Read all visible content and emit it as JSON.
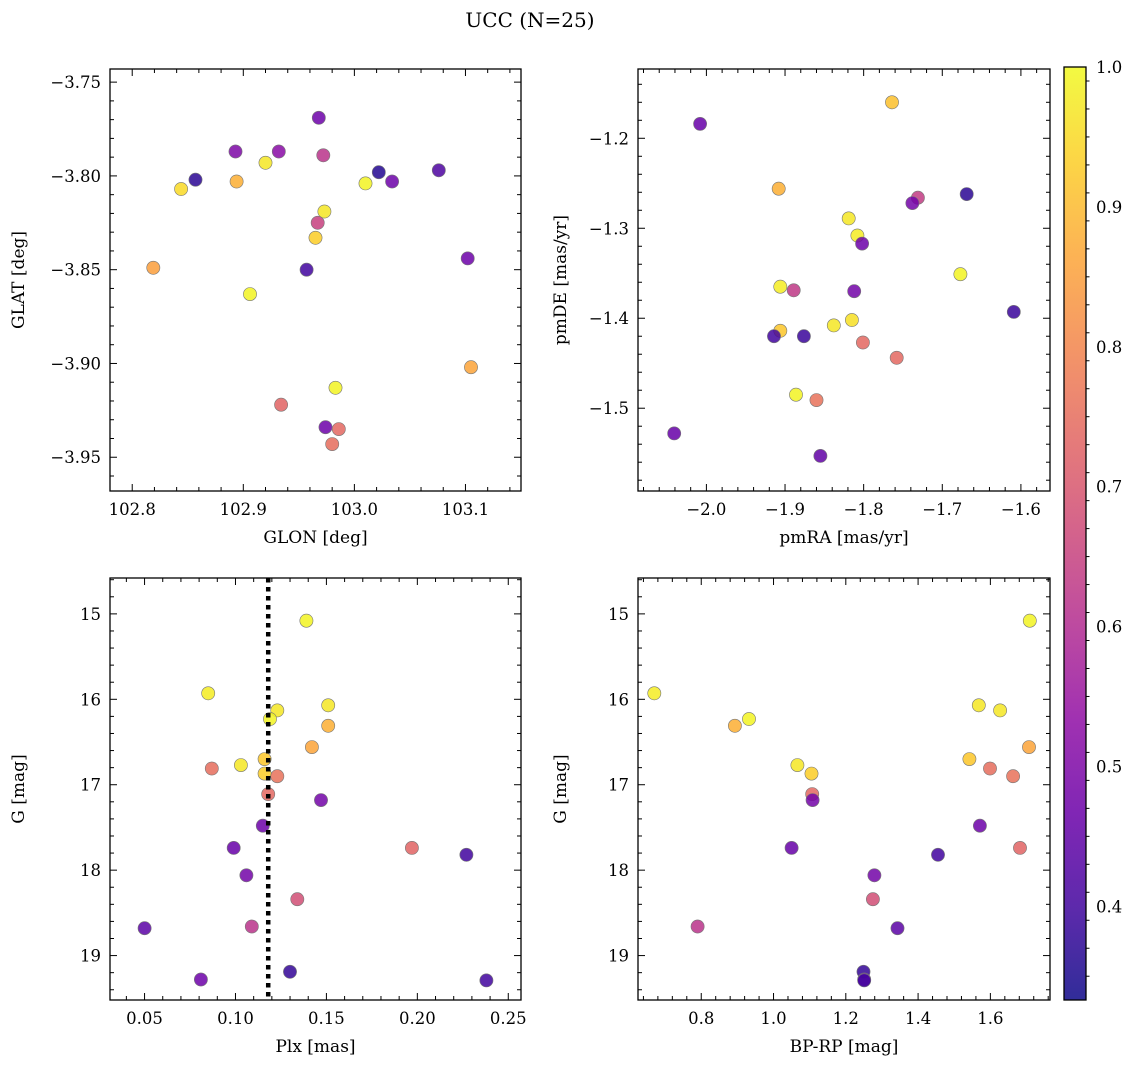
{
  "chart_data": {
    "title": "UCC (N=25)",
    "colorbar": {
      "min": 0.333,
      "max": 1.0,
      "ticks": [
        0.4,
        0.5,
        0.6,
        0.7,
        0.8,
        0.9,
        1.0
      ],
      "tick_labels": [
        "0.4",
        "0.5",
        "0.6",
        "0.7",
        "0.8",
        "0.9",
        "1.0"
      ],
      "colormap": "plasma",
      "palette": [
        "#0d0887",
        "#41049d",
        "#6a00a8",
        "#8f0da4",
        "#b12a90",
        "#cc4778",
        "#e16462",
        "#f2844b",
        "#fca636",
        "#fcce25",
        "#f0f921"
      ]
    },
    "panels": [
      {
        "type": "scatter",
        "name": "glon-glat",
        "xlabel": "GLON [deg]",
        "ylabel": "GLAT [deg]",
        "xlim": [
          102.78,
          103.15
        ],
        "ylim": [
          -3.968,
          -3.743
        ],
        "yinverted": false,
        "xticks": [
          102.8,
          102.9,
          103.0,
          103.1
        ],
        "xtick_labels": [
          "102.8",
          "102.9",
          "103.0",
          "103.1"
        ],
        "yticks": [
          -3.75,
          -3.8,
          -3.85,
          -3.9,
          -3.95
        ],
        "ytick_labels": [
          "−3.75",
          "−3.80",
          "−3.85",
          "−3.90",
          "−3.95"
        ],
        "points": [
          {
            "x": 102.857,
            "y": -3.802,
            "c": 0.37
          },
          {
            "x": 102.893,
            "y": -3.787,
            "c": 0.5
          },
          {
            "x": 102.932,
            "y": -3.787,
            "c": 0.52
          },
          {
            "x": 102.968,
            "y": -3.769,
            "c": 0.47
          },
          {
            "x": 102.972,
            "y": -3.789,
            "c": 0.62
          },
          {
            "x": 103.022,
            "y": -3.798,
            "c": 0.36
          },
          {
            "x": 103.034,
            "y": -3.803,
            "c": 0.47
          },
          {
            "x": 103.076,
            "y": -3.797,
            "c": 0.42
          },
          {
            "x": 102.844,
            "y": -3.807,
            "c": 0.95
          },
          {
            "x": 102.894,
            "y": -3.803,
            "c": 0.88
          },
          {
            "x": 102.92,
            "y": -3.793,
            "c": 0.97
          },
          {
            "x": 103.01,
            "y": -3.804,
            "c": 0.99
          },
          {
            "x": 102.973,
            "y": -3.819,
            "c": 0.97
          },
          {
            "x": 102.967,
            "y": -3.825,
            "c": 0.65
          },
          {
            "x": 102.965,
            "y": -3.833,
            "c": 0.93
          },
          {
            "x": 102.819,
            "y": -3.849,
            "c": 0.85
          },
          {
            "x": 102.957,
            "y": -3.85,
            "c": 0.4
          },
          {
            "x": 103.102,
            "y": -3.844,
            "c": 0.47
          },
          {
            "x": 102.906,
            "y": -3.863,
            "c": 0.99
          },
          {
            "x": 103.105,
            "y": -3.902,
            "c": 0.86
          },
          {
            "x": 102.983,
            "y": -3.913,
            "c": 0.99
          },
          {
            "x": 102.934,
            "y": -3.922,
            "c": 0.73
          },
          {
            "x": 102.974,
            "y": -3.934,
            "c": 0.47
          },
          {
            "x": 102.986,
            "y": -3.935,
            "c": 0.74
          },
          {
            "x": 102.98,
            "y": -3.943,
            "c": 0.75
          }
        ]
      },
      {
        "type": "scatter",
        "name": "pmra-pmde",
        "xlabel": "pmRA [mas/yr]",
        "ylabel": "pmDE [mas/yr]",
        "xlim": [
          -2.087,
          -1.563
        ],
        "ylim": [
          -1.592,
          -1.123
        ],
        "yinverted": false,
        "xticks": [
          -2.0,
          -1.9,
          -1.8,
          -1.7,
          -1.6
        ],
        "xtick_labels": [
          "−2.0",
          "−1.9",
          "−1.8",
          "−1.7",
          "−1.6"
        ],
        "yticks": [
          -1.2,
          -1.3,
          -1.4,
          -1.5
        ],
        "ytick_labels": [
          "−1.2",
          "−1.3",
          "−1.4",
          "−1.5"
        ],
        "points": [
          {
            "x": -2.008,
            "y": -1.184,
            "c": 0.46
          },
          {
            "x": -1.764,
            "y": -1.16,
            "c": 0.91
          },
          {
            "x": -1.908,
            "y": -1.256,
            "c": 0.88
          },
          {
            "x": -1.669,
            "y": -1.262,
            "c": 0.37
          },
          {
            "x": -1.731,
            "y": -1.266,
            "c": 0.64
          },
          {
            "x": -1.738,
            "y": -1.272,
            "c": 0.48
          },
          {
            "x": -1.819,
            "y": -1.289,
            "c": 0.97
          },
          {
            "x": -1.808,
            "y": -1.308,
            "c": 0.98
          },
          {
            "x": -1.802,
            "y": -1.317,
            "c": 0.47
          },
          {
            "x": -1.677,
            "y": -1.351,
            "c": 0.99
          },
          {
            "x": -1.906,
            "y": -1.365,
            "c": 0.98
          },
          {
            "x": -1.889,
            "y": -1.369,
            "c": 0.63
          },
          {
            "x": -1.812,
            "y": -1.37,
            "c": 0.48
          },
          {
            "x": -1.609,
            "y": -1.393,
            "c": 0.39
          },
          {
            "x": -1.815,
            "y": -1.402,
            "c": 0.96
          },
          {
            "x": -1.838,
            "y": -1.408,
            "c": 0.97
          },
          {
            "x": -1.906,
            "y": -1.414,
            "c": 0.92
          },
          {
            "x": -1.914,
            "y": -1.42,
            "c": 0.4
          },
          {
            "x": -1.876,
            "y": -1.42,
            "c": 0.39
          },
          {
            "x": -1.801,
            "y": -1.427,
            "c": 0.74
          },
          {
            "x": -1.758,
            "y": -1.444,
            "c": 0.74
          },
          {
            "x": -1.886,
            "y": -1.485,
            "c": 0.99
          },
          {
            "x": -1.86,
            "y": -1.491,
            "c": 0.76
          },
          {
            "x": -2.041,
            "y": -1.528,
            "c": 0.46
          },
          {
            "x": -1.855,
            "y": -1.553,
            "c": 0.45
          }
        ]
      },
      {
        "type": "scatter",
        "name": "plx-g",
        "xlabel": "Plx [mas]",
        "ylabel": "G [mag]",
        "xlim": [
          0.031,
          0.257
        ],
        "ylim": [
          19.52,
          14.58
        ],
        "yinverted": true,
        "xticks": [
          0.05,
          0.1,
          0.15,
          0.2,
          0.25
        ],
        "xtick_labels": [
          "0.05",
          "0.10",
          "0.15",
          "0.20",
          "0.25"
        ],
        "yticks": [
          15,
          16,
          17,
          18,
          19
        ],
        "ytick_labels": [
          "15",
          "16",
          "17",
          "18",
          "19"
        ],
        "vline": {
          "x": 0.118,
          "style": "dotted",
          "color": "#000000"
        },
        "points": [
          {
            "x": 0.139,
            "y": 15.08,
            "c": 0.99
          },
          {
            "x": 0.085,
            "y": 15.93,
            "c": 0.98
          },
          {
            "x": 0.151,
            "y": 16.07,
            "c": 0.97
          },
          {
            "x": 0.123,
            "y": 16.13,
            "c": 0.97
          },
          {
            "x": 0.119,
            "y": 16.23,
            "c": 0.99
          },
          {
            "x": 0.151,
            "y": 16.31,
            "c": 0.88
          },
          {
            "x": 0.142,
            "y": 16.56,
            "c": 0.86
          },
          {
            "x": 0.116,
            "y": 16.7,
            "c": 0.92
          },
          {
            "x": 0.103,
            "y": 16.77,
            "c": 0.97
          },
          {
            "x": 0.087,
            "y": 16.81,
            "c": 0.75
          },
          {
            "x": 0.116,
            "y": 16.87,
            "c": 0.93
          },
          {
            "x": 0.123,
            "y": 16.9,
            "c": 0.76
          },
          {
            "x": 0.118,
            "y": 17.11,
            "c": 0.74
          },
          {
            "x": 0.147,
            "y": 17.18,
            "c": 0.48
          },
          {
            "x": 0.115,
            "y": 17.48,
            "c": 0.47
          },
          {
            "x": 0.099,
            "y": 17.74,
            "c": 0.46
          },
          {
            "x": 0.197,
            "y": 17.74,
            "c": 0.73
          },
          {
            "x": 0.227,
            "y": 17.82,
            "c": 0.4
          },
          {
            "x": 0.106,
            "y": 18.06,
            "c": 0.48
          },
          {
            "x": 0.134,
            "y": 18.34,
            "c": 0.68
          },
          {
            "x": 0.109,
            "y": 18.66,
            "c": 0.62
          },
          {
            "x": 0.05,
            "y": 18.68,
            "c": 0.44
          },
          {
            "x": 0.13,
            "y": 19.19,
            "c": 0.38
          },
          {
            "x": 0.081,
            "y": 19.28,
            "c": 0.47
          },
          {
            "x": 0.238,
            "y": 19.29,
            "c": 0.4
          }
        ]
      },
      {
        "type": "scatter",
        "name": "bprp-g",
        "xlabel": "BP-RP [mag]",
        "ylabel": "G [mag]",
        "xlim": [
          0.625,
          1.765
        ],
        "ylim": [
          19.52,
          14.58
        ],
        "yinverted": true,
        "xticks": [
          0.8,
          1.0,
          1.2,
          1.4,
          1.6
        ],
        "xtick_labels": [
          "0.8",
          "1.0",
          "1.2",
          "1.4",
          "1.6"
        ],
        "yticks": [
          15,
          16,
          17,
          18,
          19
        ],
        "ytick_labels": [
          "15",
          "16",
          "17",
          "18",
          "19"
        ],
        "points": [
          {
            "x": 1.709,
            "y": 15.08,
            "c": 0.99
          },
          {
            "x": 0.67,
            "y": 15.93,
            "c": 0.98
          },
          {
            "x": 1.568,
            "y": 16.07,
            "c": 0.97
          },
          {
            "x": 1.627,
            "y": 16.13,
            "c": 0.97
          },
          {
            "x": 0.932,
            "y": 16.23,
            "c": 0.99
          },
          {
            "x": 0.893,
            "y": 16.31,
            "c": 0.88
          },
          {
            "x": 1.707,
            "y": 16.56,
            "c": 0.86
          },
          {
            "x": 1.542,
            "y": 16.7,
            "c": 0.92
          },
          {
            "x": 1.066,
            "y": 16.77,
            "c": 0.97
          },
          {
            "x": 1.599,
            "y": 16.81,
            "c": 0.75
          },
          {
            "x": 1.105,
            "y": 16.87,
            "c": 0.93
          },
          {
            "x": 1.663,
            "y": 16.9,
            "c": 0.76
          },
          {
            "x": 1.107,
            "y": 17.11,
            "c": 0.74
          },
          {
            "x": 1.108,
            "y": 17.18,
            "c": 0.48
          },
          {
            "x": 1.571,
            "y": 17.48,
            "c": 0.47
          },
          {
            "x": 1.05,
            "y": 17.74,
            "c": 0.46
          },
          {
            "x": 1.682,
            "y": 17.74,
            "c": 0.73
          },
          {
            "x": 1.455,
            "y": 17.82,
            "c": 0.4
          },
          {
            "x": 1.279,
            "y": 18.06,
            "c": 0.48
          },
          {
            "x": 1.275,
            "y": 18.34,
            "c": 0.68
          },
          {
            "x": 0.79,
            "y": 18.66,
            "c": 0.62
          },
          {
            "x": 1.343,
            "y": 18.68,
            "c": 0.44
          },
          {
            "x": 1.249,
            "y": 19.19,
            "c": 0.38
          },
          {
            "x": 1.251,
            "y": 19.28,
            "c": 0.47
          },
          {
            "x": 1.251,
            "y": 19.29,
            "c": 0.4
          }
        ]
      }
    ]
  }
}
